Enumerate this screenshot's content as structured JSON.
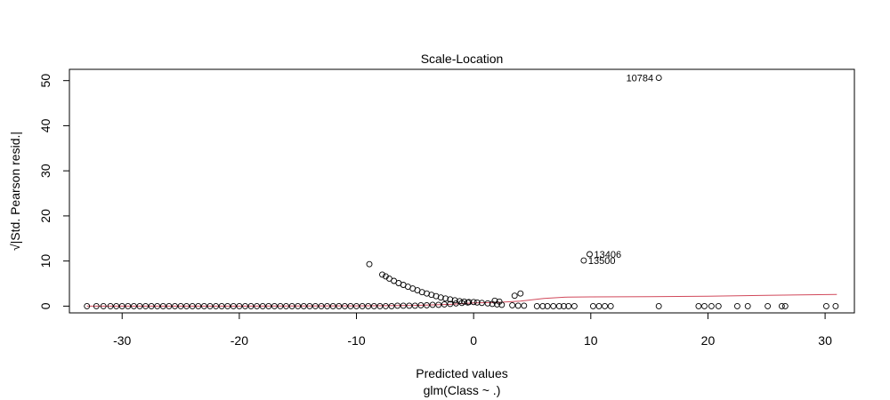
{
  "chart_data": {
    "type": "scatter",
    "title": "Scale-Location",
    "xlabel": "Predicted values",
    "subtitle": "glm(Class ~ .)",
    "ylabel": "√|Std. Pearson resid.|",
    "xlim": [
      -34.5,
      32.5
    ],
    "ylim": [
      -1.5,
      52.5
    ],
    "x_ticks": [
      -30,
      -20,
      -10,
      0,
      10,
      20,
      30
    ],
    "y_ticks": [
      0,
      10,
      20,
      30,
      40,
      50
    ],
    "grid": false,
    "legend": "none",
    "point_color": "#000000",
    "smoother_color": "#d1495b",
    "labeled_points": [
      {
        "label": "10784",
        "x": 15.8,
        "y": 50.6
      },
      {
        "label": "13406",
        "x": 9.9,
        "y": 11.5
      },
      {
        "label": "13500",
        "x": 9.4,
        "y": 10.1
      }
    ],
    "points": [
      [
        -33.0,
        0.0
      ],
      [
        -32.2,
        0.0
      ],
      [
        -31.6,
        0.0
      ],
      [
        -31.0,
        0.0
      ],
      [
        -30.5,
        0.0
      ],
      [
        -30.0,
        0.0
      ],
      [
        -29.5,
        0.0
      ],
      [
        -29.0,
        0.0
      ],
      [
        -28.5,
        0.0
      ],
      [
        -28.0,
        0.0
      ],
      [
        -27.5,
        0.0
      ],
      [
        -27.0,
        0.0
      ],
      [
        -26.5,
        0.0
      ],
      [
        -26.0,
        0.0
      ],
      [
        -25.5,
        0.0
      ],
      [
        -25.0,
        0.0
      ],
      [
        -24.5,
        0.0
      ],
      [
        -24.0,
        0.0
      ],
      [
        -23.5,
        0.0
      ],
      [
        -23.0,
        0.0
      ],
      [
        -22.5,
        0.0
      ],
      [
        -22.0,
        0.0
      ],
      [
        -21.5,
        0.0
      ],
      [
        -21.0,
        0.0
      ],
      [
        -20.5,
        0.0
      ],
      [
        -20.0,
        0.0
      ],
      [
        -19.5,
        0.0
      ],
      [
        -19.0,
        0.0
      ],
      [
        -18.5,
        0.0
      ],
      [
        -18.0,
        0.0
      ],
      [
        -17.5,
        0.0
      ],
      [
        -17.0,
        0.0
      ],
      [
        -16.5,
        0.0
      ],
      [
        -16.0,
        0.0
      ],
      [
        -15.5,
        0.0
      ],
      [
        -15.0,
        0.0
      ],
      [
        -14.5,
        0.0
      ],
      [
        -14.0,
        0.0
      ],
      [
        -13.5,
        0.0
      ],
      [
        -13.0,
        0.0
      ],
      [
        -12.5,
        0.0
      ],
      [
        -12.0,
        0.0
      ],
      [
        -11.5,
        0.0
      ],
      [
        -11.0,
        0.0
      ],
      [
        -10.5,
        0.0
      ],
      [
        -10.0,
        0.0
      ],
      [
        -9.5,
        0.0
      ],
      [
        -9.0,
        0.0
      ],
      [
        -8.5,
        0.0
      ],
      [
        -8.0,
        0.0
      ],
      [
        -7.5,
        0.0
      ],
      [
        -7.0,
        0.0
      ],
      [
        -6.5,
        0.1
      ],
      [
        -6.0,
        0.1
      ],
      [
        -5.5,
        0.1
      ],
      [
        -5.0,
        0.1
      ],
      [
        -4.5,
        0.2
      ],
      [
        -4.0,
        0.2
      ],
      [
        -3.5,
        0.3
      ],
      [
        -3.0,
        0.3
      ],
      [
        -2.5,
        0.4
      ],
      [
        -2.0,
        0.5
      ],
      [
        -1.5,
        0.6
      ],
      [
        -1.0,
        0.7
      ],
      [
        -0.5,
        0.8
      ],
      [
        0.0,
        0.9
      ],
      [
        -8.9,
        9.3
      ],
      [
        -7.8,
        7.0
      ],
      [
        -7.5,
        6.6
      ],
      [
        -7.2,
        6.1
      ],
      [
        -6.8,
        5.6
      ],
      [
        -6.4,
        5.1
      ],
      [
        -6.0,
        4.7
      ],
      [
        -5.6,
        4.3
      ],
      [
        -5.2,
        3.9
      ],
      [
        -4.8,
        3.5
      ],
      [
        -4.4,
        3.1
      ],
      [
        -4.0,
        2.8
      ],
      [
        -3.6,
        2.5
      ],
      [
        -3.2,
        2.2
      ],
      [
        -2.8,
        1.9
      ],
      [
        -2.4,
        1.7
      ],
      [
        -2.0,
        1.5
      ],
      [
        -1.6,
        1.3
      ],
      [
        -1.2,
        1.1
      ],
      [
        -0.8,
        1.0
      ],
      [
        -0.4,
        0.9
      ],
      [
        0.3,
        0.8
      ],
      [
        0.7,
        0.7
      ],
      [
        1.2,
        0.6
      ],
      [
        1.6,
        0.5
      ],
      [
        2.0,
        0.4
      ],
      [
        2.4,
        0.3
      ],
      [
        1.8,
        1.2
      ],
      [
        2.2,
        1.0
      ],
      [
        3.3,
        0.2
      ],
      [
        3.5,
        2.3
      ],
      [
        4.0,
        2.8
      ],
      [
        3.8,
        0.1
      ],
      [
        4.3,
        0.1
      ],
      [
        5.4,
        0.0
      ],
      [
        5.9,
        0.0
      ],
      [
        6.3,
        0.0
      ],
      [
        6.8,
        0.0
      ],
      [
        7.3,
        0.0
      ],
      [
        7.7,
        0.0
      ],
      [
        8.1,
        0.0
      ],
      [
        8.6,
        0.0
      ],
      [
        10.2,
        0.0
      ],
      [
        10.7,
        0.0
      ],
      [
        11.2,
        0.0
      ],
      [
        11.7,
        0.0
      ],
      [
        15.8,
        0.0
      ],
      [
        19.2,
        0.0
      ],
      [
        19.7,
        0.0
      ],
      [
        20.3,
        0.0
      ],
      [
        20.9,
        0.0
      ],
      [
        22.5,
        0.0
      ],
      [
        23.4,
        0.0
      ],
      [
        25.1,
        0.0
      ],
      [
        26.3,
        0.0
      ],
      [
        26.6,
        0.0
      ],
      [
        30.1,
        0.0
      ],
      [
        30.9,
        0.0
      ],
      [
        15.8,
        50.6
      ],
      [
        9.9,
        11.5
      ],
      [
        9.4,
        10.1
      ]
    ],
    "smoother": [
      [
        -33.0,
        0.0
      ],
      [
        -20.0,
        0.0
      ],
      [
        -10.0,
        0.05
      ],
      [
        -5.0,
        0.15
      ],
      [
        -2.0,
        0.4
      ],
      [
        0.0,
        0.7
      ],
      [
        2.0,
        0.8
      ],
      [
        4.0,
        1.1
      ],
      [
        6.0,
        1.7
      ],
      [
        8.0,
        2.0
      ],
      [
        10.0,
        2.05
      ],
      [
        15.0,
        2.1
      ],
      [
        20.0,
        2.2
      ],
      [
        25.0,
        2.4
      ],
      [
        31.0,
        2.6
      ]
    ]
  }
}
